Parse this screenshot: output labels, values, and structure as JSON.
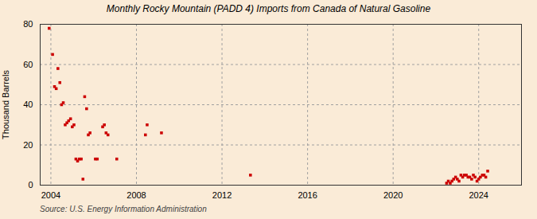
{
  "chart_data": {
    "type": "scatter",
    "title": "Monthly Rocky Mountain (PADD 4) Imports from Canada of Natural Gasoline",
    "ylabel": "Thousand Barrels",
    "annotations": [
      "Source: U.S. Energy Information Administration"
    ],
    "color": "#cc0000",
    "marker": "square",
    "grid": true,
    "xlim": [
      2003.5,
      2026.0
    ],
    "ylim": [
      0,
      80
    ],
    "xticks": [
      2004,
      2008,
      2012,
      2016,
      2020,
      2024
    ],
    "yticks": [
      0,
      20,
      40,
      60,
      80
    ],
    "x": [
      2003.92,
      2004.08,
      2004.17,
      2004.25,
      2004.33,
      2004.42,
      2004.5,
      2004.58,
      2004.67,
      2004.75,
      2004.83,
      2004.92,
      2005.0,
      2005.08,
      2005.17,
      2005.25,
      2005.33,
      2005.42,
      2005.5,
      2005.58,
      2005.67,
      2005.75,
      2005.83,
      2006.08,
      2006.17,
      2006.42,
      2006.5,
      2006.58,
      2006.67,
      2007.08,
      2008.42,
      2008.5,
      2009.17,
      2013.33,
      2022.5,
      2022.58,
      2022.67,
      2022.75,
      2022.83,
      2022.92,
      2023.0,
      2023.08,
      2023.17,
      2023.25,
      2023.33,
      2023.42,
      2023.5,
      2023.58,
      2023.67,
      2023.75,
      2023.83,
      2023.92,
      2024.0,
      2024.08,
      2024.17,
      2024.25,
      2024.33,
      2024.42
    ],
    "values": [
      78,
      65,
      49,
      48,
      58,
      51,
      40,
      41,
      30,
      31,
      32,
      33,
      29,
      30,
      13,
      12,
      13,
      13,
      3,
      44,
      38,
      25,
      26,
      13,
      13,
      29,
      30,
      26,
      25,
      13,
      25,
      30,
      26,
      5,
      1,
      2,
      1,
      2,
      3,
      4,
      3,
      2,
      5,
      4,
      5,
      5,
      4,
      4,
      3,
      5,
      4,
      2,
      3,
      4,
      5,
      5,
      4,
      7
    ]
  }
}
